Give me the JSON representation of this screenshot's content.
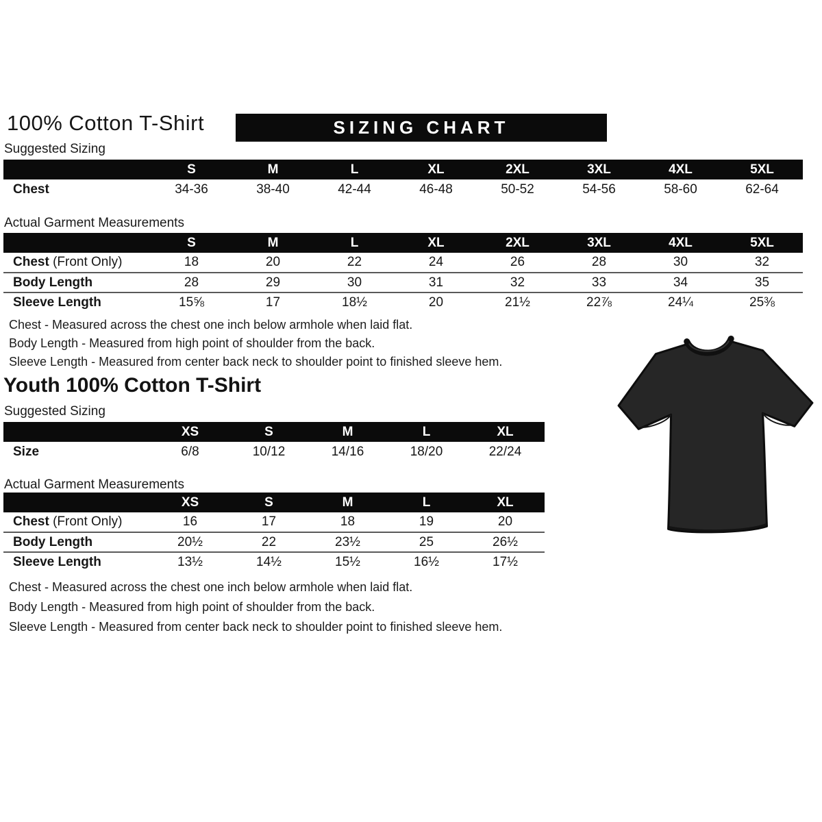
{
  "colors": {
    "banner_bg": "#0b0b0b",
    "banner_text": "#ffffff",
    "table_header_bg": "#0b0b0b",
    "row_divider": "#595959",
    "tshirt_fill": "#262626",
    "tshirt_outline": "#0d0d0d"
  },
  "adult": {
    "title": "100% Cotton T-Shirt",
    "banner_title": "SIZING CHART",
    "suggested_label": "Suggested Sizing",
    "suggested_table": {
      "columns": [
        "S",
        "M",
        "L",
        "XL",
        "2XL",
        "3XL",
        "4XL",
        "5XL"
      ],
      "rows": [
        {
          "label": "Chest",
          "suffix": "",
          "values": [
            "34-36",
            "38-40",
            "42-44",
            "46-48",
            "50-52",
            "54-56",
            "58-60",
            "62-64"
          ]
        }
      ]
    },
    "actual_label": "Actual Garment Measurements",
    "actual_table": {
      "columns": [
        "S",
        "M",
        "L",
        "XL",
        "2XL",
        "3XL",
        "4XL",
        "5XL"
      ],
      "rows": [
        {
          "label": "Chest",
          "suffix": " (Front Only)",
          "values": [
            "18",
            "20",
            "22",
            "24",
            "26",
            "28",
            "30",
            "32"
          ]
        },
        {
          "label": "Body Length",
          "suffix": "",
          "values": [
            "28",
            "29",
            "30",
            "31",
            "32",
            "33",
            "34",
            "35"
          ]
        },
        {
          "label": "Sleeve Length",
          "suffix": "",
          "values": [
            "15⅝",
            "17",
            "18½",
            "20",
            "21½",
            "22⅞",
            "24¼",
            "25⅜"
          ]
        }
      ]
    },
    "notes": [
      "Chest - Measured across the chest one inch below armhole when laid flat.",
      "Body Length - Measured from high point of shoulder from the back.",
      "Sleeve Length - Measured from center back neck to shoulder point to finished sleeve hem."
    ]
  },
  "youth": {
    "title": "Youth 100% Cotton T-Shirt",
    "suggested_label": "Suggested Sizing",
    "suggested_table": {
      "columns": [
        "XS",
        "S",
        "M",
        "L",
        "XL"
      ],
      "rows": [
        {
          "label": "Size",
          "suffix": "",
          "values": [
            "6/8",
            "10/12",
            "14/16",
            "18/20",
            "22/24"
          ]
        }
      ]
    },
    "actual_label": "Actual Garment Measurements",
    "actual_table": {
      "columns": [
        "XS",
        "S",
        "M",
        "L",
        "XL"
      ],
      "rows": [
        {
          "label": "Chest",
          "suffix": " (Front Only)",
          "values": [
            "16",
            "17",
            "18",
            "19",
            "20"
          ]
        },
        {
          "label": "Body Length",
          "suffix": "",
          "values": [
            "20½",
            "22",
            "23½",
            "25",
            "26½"
          ]
        },
        {
          "label": "Sleeve Length",
          "suffix": "",
          "values": [
            "13½",
            "14½",
            "15½",
            "16½",
            "17½"
          ]
        }
      ]
    },
    "notes": [
      "Chest - Measured across the chest one inch below armhole when laid flat.",
      "Body Length - Measured from high point of shoulder from the back.",
      "Sleeve Length - Measured from center back neck to shoulder point to finished sleeve hem."
    ]
  }
}
